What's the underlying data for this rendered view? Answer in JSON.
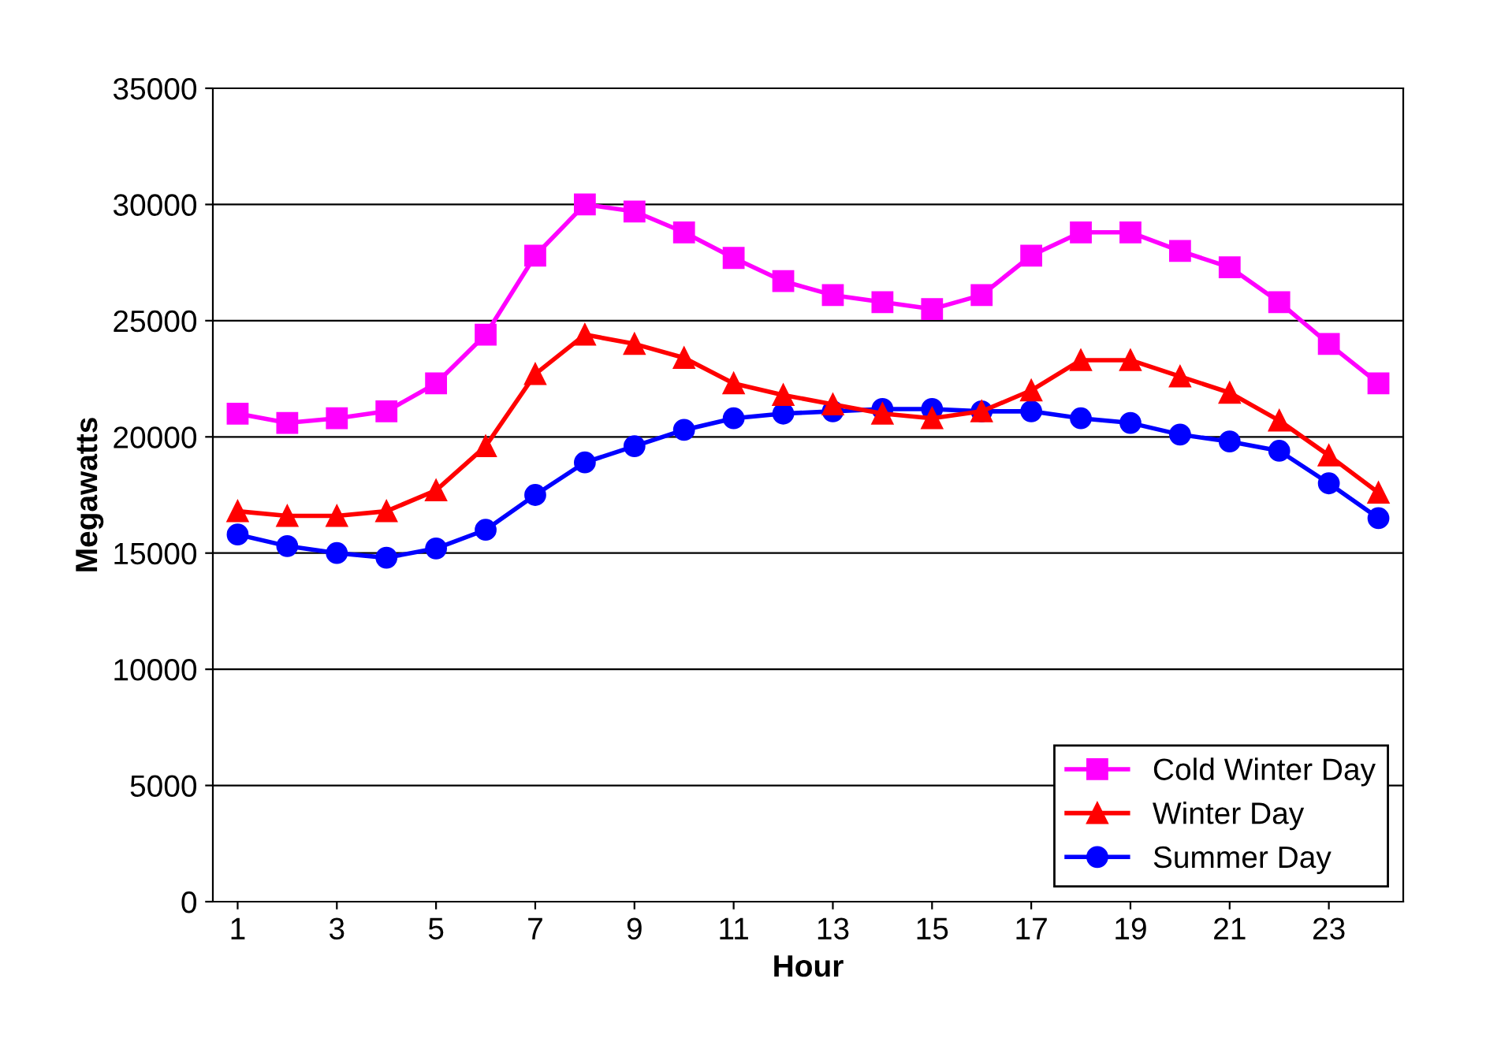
{
  "chart_data": {
    "type": "line",
    "xlabel": "Hour",
    "ylabel": "Megawatts",
    "x": [
      1,
      2,
      3,
      4,
      5,
      6,
      7,
      8,
      9,
      10,
      11,
      12,
      13,
      14,
      15,
      16,
      17,
      18,
      19,
      20,
      21,
      22,
      23,
      24
    ],
    "series": [
      {
        "name": "Cold Winter Day",
        "color": "#ff00ff",
        "marker": "square",
        "values": [
          21000,
          20600,
          20800,
          21100,
          22300,
          24400,
          27800,
          30000,
          29700,
          28800,
          27700,
          26700,
          26100,
          25800,
          25500,
          26100,
          27800,
          28800,
          28800,
          28000,
          27300,
          25800,
          24000,
          22300
        ]
      },
      {
        "name": "Winter Day",
        "color": "#ff0000",
        "marker": "triangle",
        "values": [
          16800,
          16600,
          16600,
          16800,
          17700,
          19600,
          22700,
          24400,
          24000,
          23400,
          22300,
          21800,
          21400,
          21000,
          20800,
          21100,
          22000,
          23300,
          23300,
          22600,
          21900,
          20700,
          19200,
          17600
        ]
      },
      {
        "name": "Summer Day",
        "color": "#0000ff",
        "marker": "circle",
        "values": [
          15800,
          15300,
          15000,
          14800,
          15200,
          16000,
          17500,
          18900,
          19600,
          20300,
          20800,
          21000,
          21100,
          21200,
          21200,
          21100,
          21100,
          20800,
          20600,
          20100,
          19800,
          19400,
          18000,
          16500
        ]
      }
    ],
    "xlim": [
      0.5,
      24.5
    ],
    "xticks": [
      1,
      3,
      5,
      7,
      9,
      11,
      13,
      15,
      17,
      19,
      21,
      23
    ],
    "ylim": [
      0,
      35000
    ],
    "yticks": [
      0,
      5000,
      10000,
      15000,
      20000,
      25000,
      30000,
      35000
    ],
    "grid": "y",
    "legend": "bottom right"
  }
}
